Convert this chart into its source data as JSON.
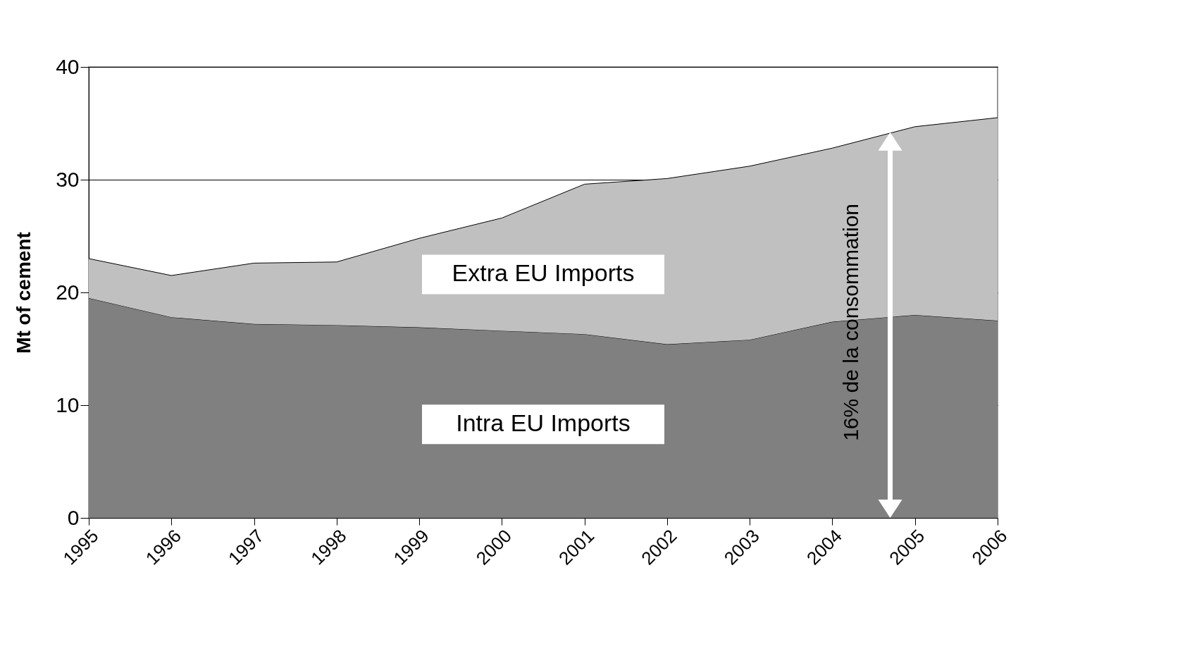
{
  "chart_data": {
    "type": "area",
    "stacked": true,
    "ylabel": "Mt of cement",
    "x": [
      1995,
      1996,
      1997,
      1998,
      1999,
      2000,
      2001,
      2002,
      2003,
      2004,
      2005,
      2006
    ],
    "xlim": [
      1995,
      2006
    ],
    "xticks": [
      1995,
      1996,
      1997,
      1998,
      1999,
      2000,
      2001,
      2002,
      2003,
      2004,
      2005,
      2006
    ],
    "ylim": [
      0,
      40
    ],
    "yticks": [
      0,
      10,
      20,
      30,
      40
    ],
    "grid": "y",
    "series": [
      {
        "name": "Intra EU Imports",
        "color": "#808080",
        "values": [
          19.5,
          17.8,
          17.2,
          17.1,
          16.9,
          16.6,
          16.3,
          15.4,
          15.8,
          17.4,
          18.0,
          17.5
        ]
      },
      {
        "name": "Extra EU Imports",
        "color": "#c0c0c0",
        "values": [
          3.5,
          3.7,
          5.4,
          5.6,
          7.9,
          10.0,
          13.3,
          14.7,
          15.4,
          15.4,
          16.7,
          18.0
        ]
      }
    ],
    "annotations": [
      "16% de la consommation"
    ]
  }
}
